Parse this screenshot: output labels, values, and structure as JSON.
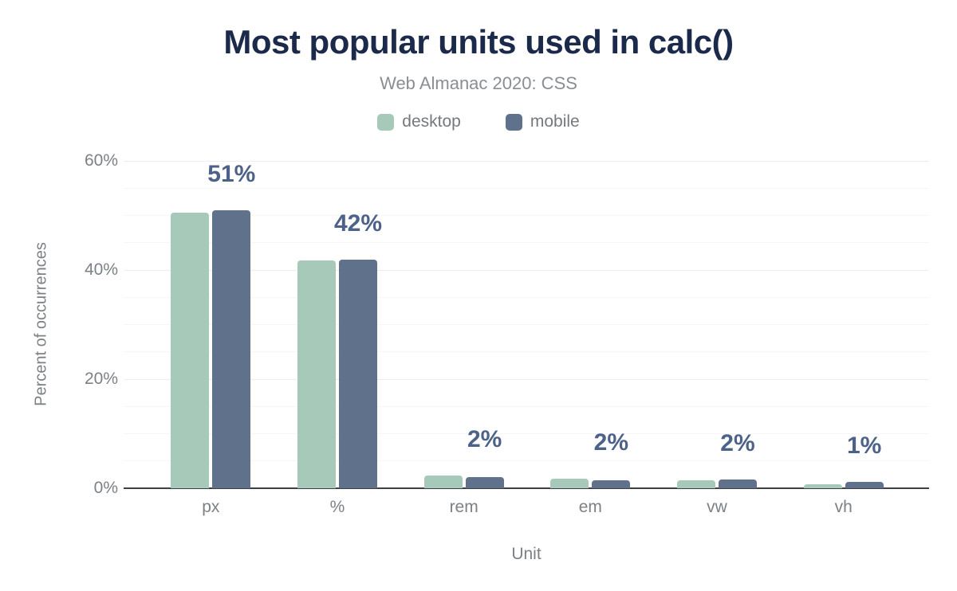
{
  "colors": {
    "background": "#ffffff",
    "title": "#1b294b",
    "subtitle": "#8a8e93",
    "axis_text": "#7c8186",
    "legend_text": "#75797e",
    "value_label": "#4d6289",
    "grid_major": "#ecedef",
    "grid_minor": "#f6f6f8",
    "baseline": "#3d4145",
    "desktop": "#a7c9b9",
    "mobile": "#60718c"
  },
  "chart_data": {
    "type": "bar",
    "title": "Most popular units used in calc()",
    "subtitle": "Web Almanac 2020: CSS",
    "xlabel": "Unit",
    "ylabel": "Percent of occurrences",
    "categories": [
      "px",
      "%",
      "rem",
      "em",
      "vw",
      "vh"
    ],
    "series": [
      {
        "name": "desktop",
        "color": "#a7c9b9",
        "values": [
          50.5,
          41.7,
          2.3,
          1.8,
          1.5,
          0.8
        ]
      },
      {
        "name": "mobile",
        "color": "#60718c",
        "values": [
          51.0,
          41.9,
          2.0,
          1.5,
          1.6,
          1.2
        ]
      }
    ],
    "bar_labels": [
      "51%",
      "42%",
      "2%",
      "2%",
      "2%",
      "1%"
    ],
    "ylim": [
      0,
      60
    ],
    "yticks": [
      {
        "value": 0,
        "label": "0%"
      },
      {
        "value": 20,
        "label": "20%"
      },
      {
        "value": 40,
        "label": "40%"
      },
      {
        "value": 60,
        "label": "60%"
      }
    ],
    "grid": {
      "minor_every": 5,
      "major_every": 20,
      "orientation": "horizontal"
    },
    "legend_position": "top"
  }
}
